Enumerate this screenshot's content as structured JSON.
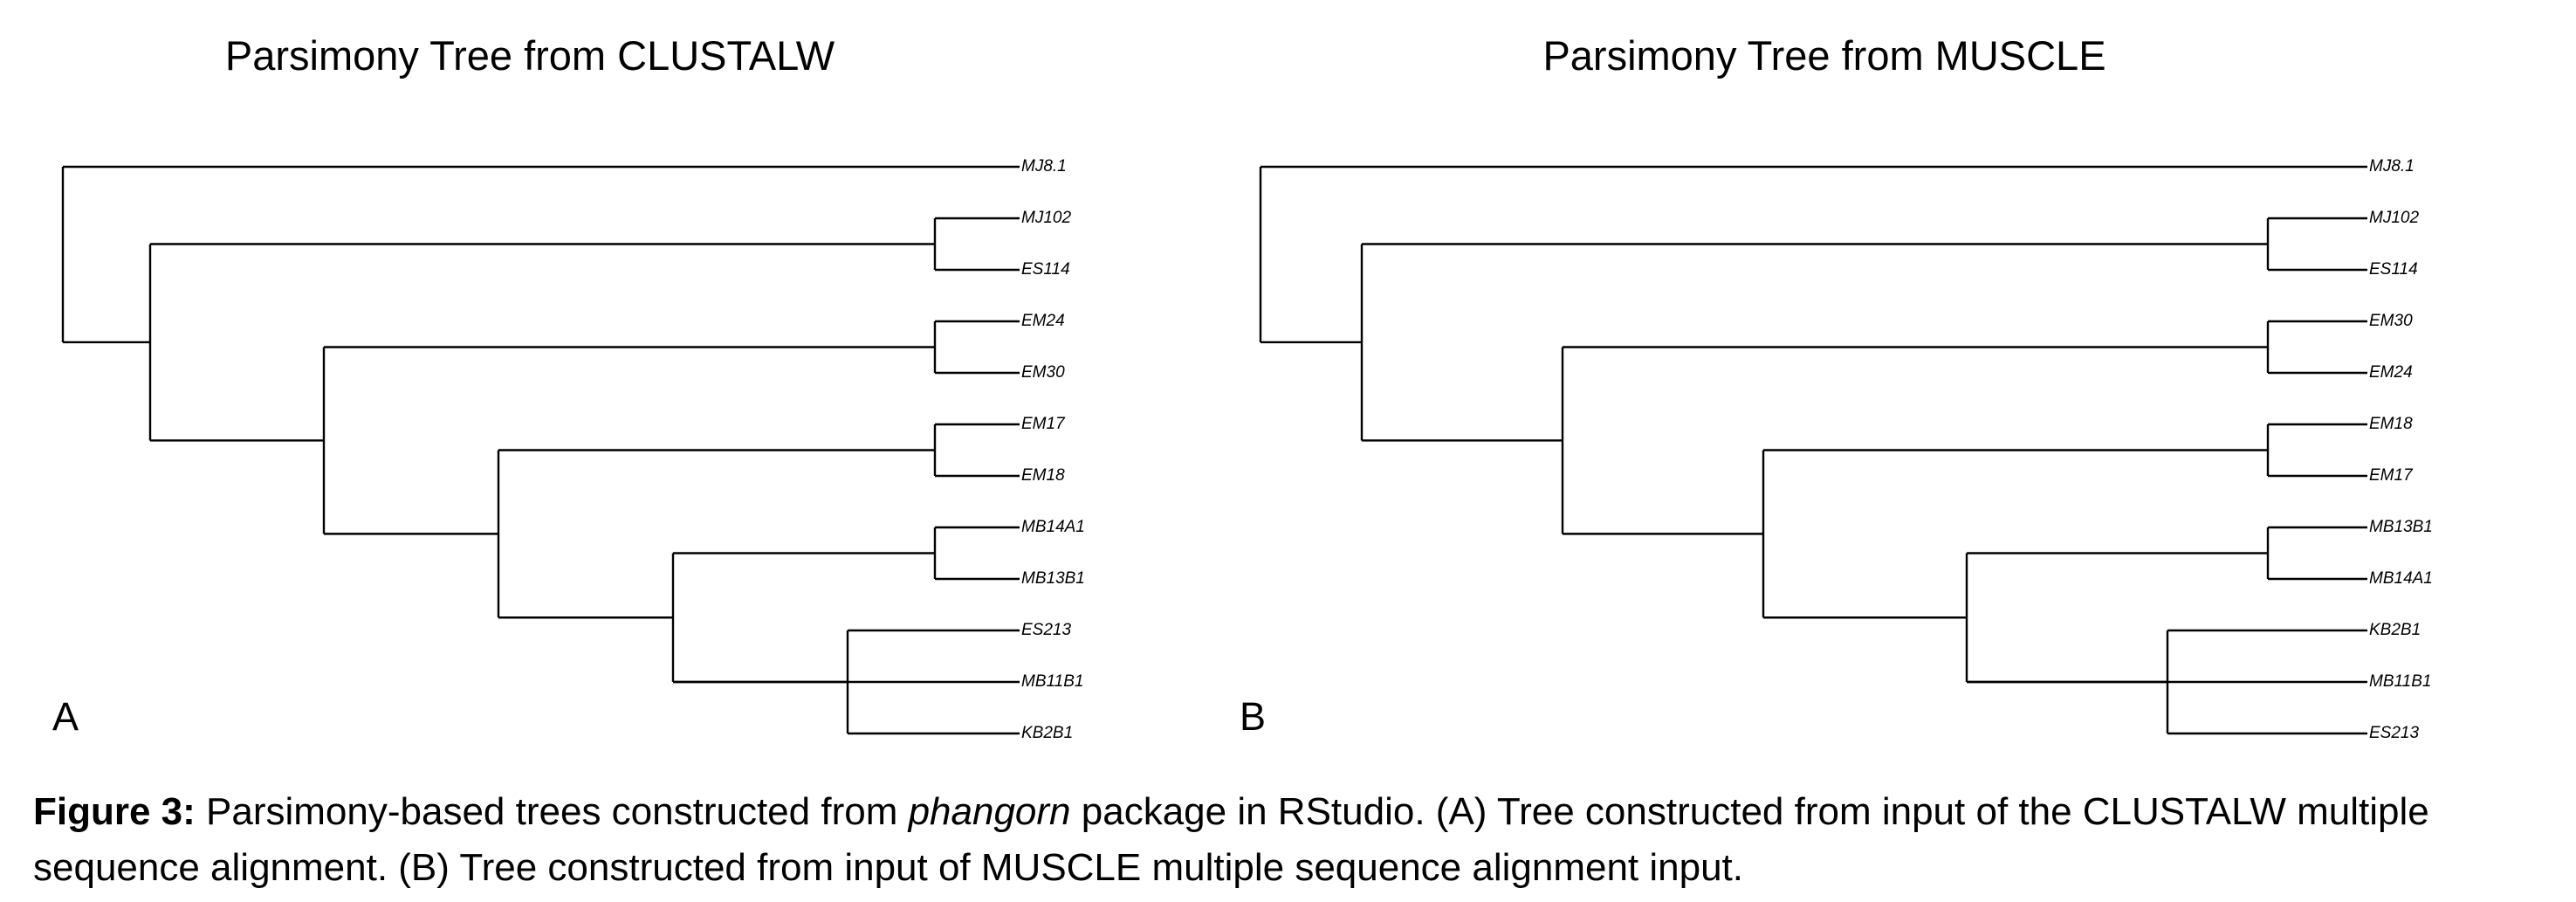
{
  "panels": [
    {
      "id": "A",
      "title": "Parsimony Tree from CLUSTALW",
      "letter": "A",
      "tips": [
        "MJ8.1",
        "MJ102",
        "ES114",
        "EM24",
        "EM30",
        "EM17",
        "EM18",
        "MB14A1",
        "MB13B1",
        "ES213",
        "MB11B1",
        "KB2B1"
      ]
    },
    {
      "id": "B",
      "title": "Parsimony Tree from MUSCLE",
      "letter": "B",
      "tips": [
        "MJ8.1",
        "MJ102",
        "ES114",
        "EM30",
        "EM24",
        "EM18",
        "EM17",
        "MB13B1",
        "MB14A1",
        "KB2B1",
        "MB11B1",
        "ES213"
      ]
    }
  ],
  "caption": {
    "label": "Figure 3:",
    "text_before": " Parsimony-based trees constructed from ",
    "italic": "phangorn",
    "text_after": " package in RStudio. (A) Tree constructed from input of the CLUSTALW multiple sequence alignment. (B) Tree constructed from input of MUSCLE multiple sequence alignment input."
  }
}
